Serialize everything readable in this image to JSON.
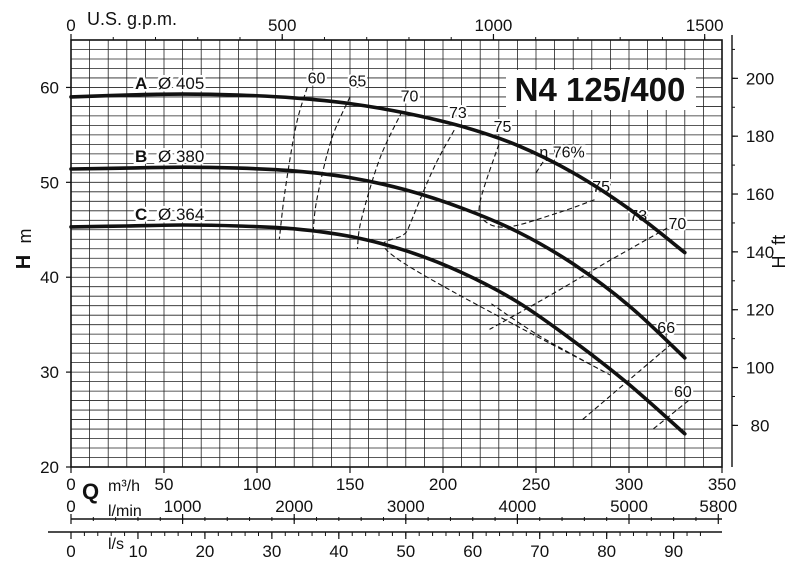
{
  "chart_data": {
    "type": "line",
    "title": "N4 125/400",
    "ylabel_left": {
      "main": "H",
      "unit": "m"
    },
    "ylabel_right": {
      "main": "H",
      "unit": "ft"
    },
    "xlabel_q": {
      "main": "Q",
      "unit": "m³/h"
    },
    "x_usgpm_label": "U.S. g.p.m.",
    "x_lmin_label": "l/min",
    "x_ls_label": "l/s",
    "xlim": [
      0,
      350
    ],
    "ylim": [
      20,
      65
    ],
    "grid": true,
    "x_ticks_m3h": [
      "0",
      "50",
      "100",
      "150",
      "200",
      "250",
      "300",
      "350"
    ],
    "x_ticks_usgpm": [
      "0",
      "500",
      "1000",
      "1500"
    ],
    "x_ticks_lmin": [
      "0",
      "1000",
      "2000",
      "3000",
      "4000",
      "5000",
      "5800"
    ],
    "x_ticks_ls": [
      "0",
      "10",
      "20",
      "30",
      "40",
      "50",
      "60",
      "70",
      "80",
      "90"
    ],
    "y_ticks_m": [
      "20",
      "30",
      "40",
      "50",
      "60"
    ],
    "y_ticks_ft": [
      "80",
      "100",
      "120",
      "140",
      "160",
      "180",
      "200"
    ],
    "series": [
      {
        "name": "A",
        "diameter": "Ø 405",
        "x": [
          0,
          30,
          60,
          90,
          120,
          150,
          180,
          210,
          240,
          270,
          300,
          330
        ],
        "y": [
          59.0,
          59.2,
          59.3,
          59.2,
          58.9,
          58.3,
          57.3,
          55.9,
          53.9,
          51.0,
          47.2,
          42.6
        ]
      },
      {
        "name": "B",
        "diameter": "Ø 380",
        "x": [
          0,
          30,
          60,
          90,
          120,
          150,
          180,
          210,
          240,
          270,
          300,
          330
        ],
        "y": [
          51.4,
          51.5,
          51.6,
          51.5,
          51.2,
          50.5,
          49.2,
          47.3,
          44.8,
          41.4,
          37.0,
          31.5
        ]
      },
      {
        "name": "C",
        "diameter": "Ø 364",
        "x": [
          0,
          30,
          60,
          90,
          120,
          150,
          180,
          210,
          240,
          270,
          300,
          330
        ],
        "y": [
          45.3,
          45.4,
          45.5,
          45.4,
          45.1,
          44.3,
          42.8,
          40.5,
          37.4,
          33.3,
          28.7,
          23.5
        ]
      }
    ],
    "efficiency": {
      "label_prefix": "η",
      "curves": [
        {
          "label": "60",
          "x": [
            127,
            121,
            115,
            112
          ],
          "y": [
            60.0,
            56.0,
            49.0,
            44.0
          ]
        },
        {
          "label": "65",
          "x": [
            150,
            140,
            132,
            130
          ],
          "y": [
            59.0,
            54.5,
            48.0,
            44.0
          ]
        },
        {
          "label": "70",
          "x": [
            178,
            166,
            156,
            154
          ],
          "y": [
            57.5,
            52.5,
            46.0,
            43.0
          ]
        },
        {
          "label": "73",
          "x": [
            206,
            195,
            181,
            175,
            287,
            252,
            226
          ],
          "y": [
            55.5,
            51.5,
            45.0,
            42.0,
            30.0,
            33.8,
            37.2
          ]
        },
        {
          "label": "75",
          "x": [
            230,
            220,
            222,
            235,
            262,
            282
          ],
          "y": [
            54.0,
            48.0,
            46.0,
            45.3,
            46.8,
            48.2
          ]
        },
        {
          "label": "76%",
          "x": [
            250,
            255
          ],
          "y": [
            51.0,
            52.5
          ]
        },
        {
          "label": "70",
          "x": [
            328,
            290,
            255,
            225
          ],
          "y": [
            46.0,
            41.8,
            37.8,
            34.5
          ]
        },
        {
          "label": "66",
          "x": [
            323,
            275
          ],
          "y": [
            33.0,
            25.0
          ]
        },
        {
          "label": "60",
          "x": [
            332,
            313
          ],
          "y": [
            27.0,
            24.0
          ]
        }
      ],
      "labels": [
        {
          "text": "60",
          "x": 132,
          "y": 60.4
        },
        {
          "text": "65",
          "x": 154,
          "y": 60.1
        },
        {
          "text": "70",
          "x": 182,
          "y": 58.5
        },
        {
          "text": "73",
          "x": 208,
          "y": 56.8
        },
        {
          "text": "75",
          "x": 232,
          "y": 55.3
        },
        {
          "text": "η 76%",
          "x": 264,
          "y": 52.6
        },
        {
          "text": "75",
          "x": 285,
          "y": 49.0
        },
        {
          "text": "73",
          "x": 305,
          "y": 45.9
        },
        {
          "text": "70",
          "x": 326,
          "y": 45.1
        },
        {
          "text": "66",
          "x": 320,
          "y": 34.1
        },
        {
          "text": "60",
          "x": 329,
          "y": 27.4
        }
      ]
    }
  }
}
